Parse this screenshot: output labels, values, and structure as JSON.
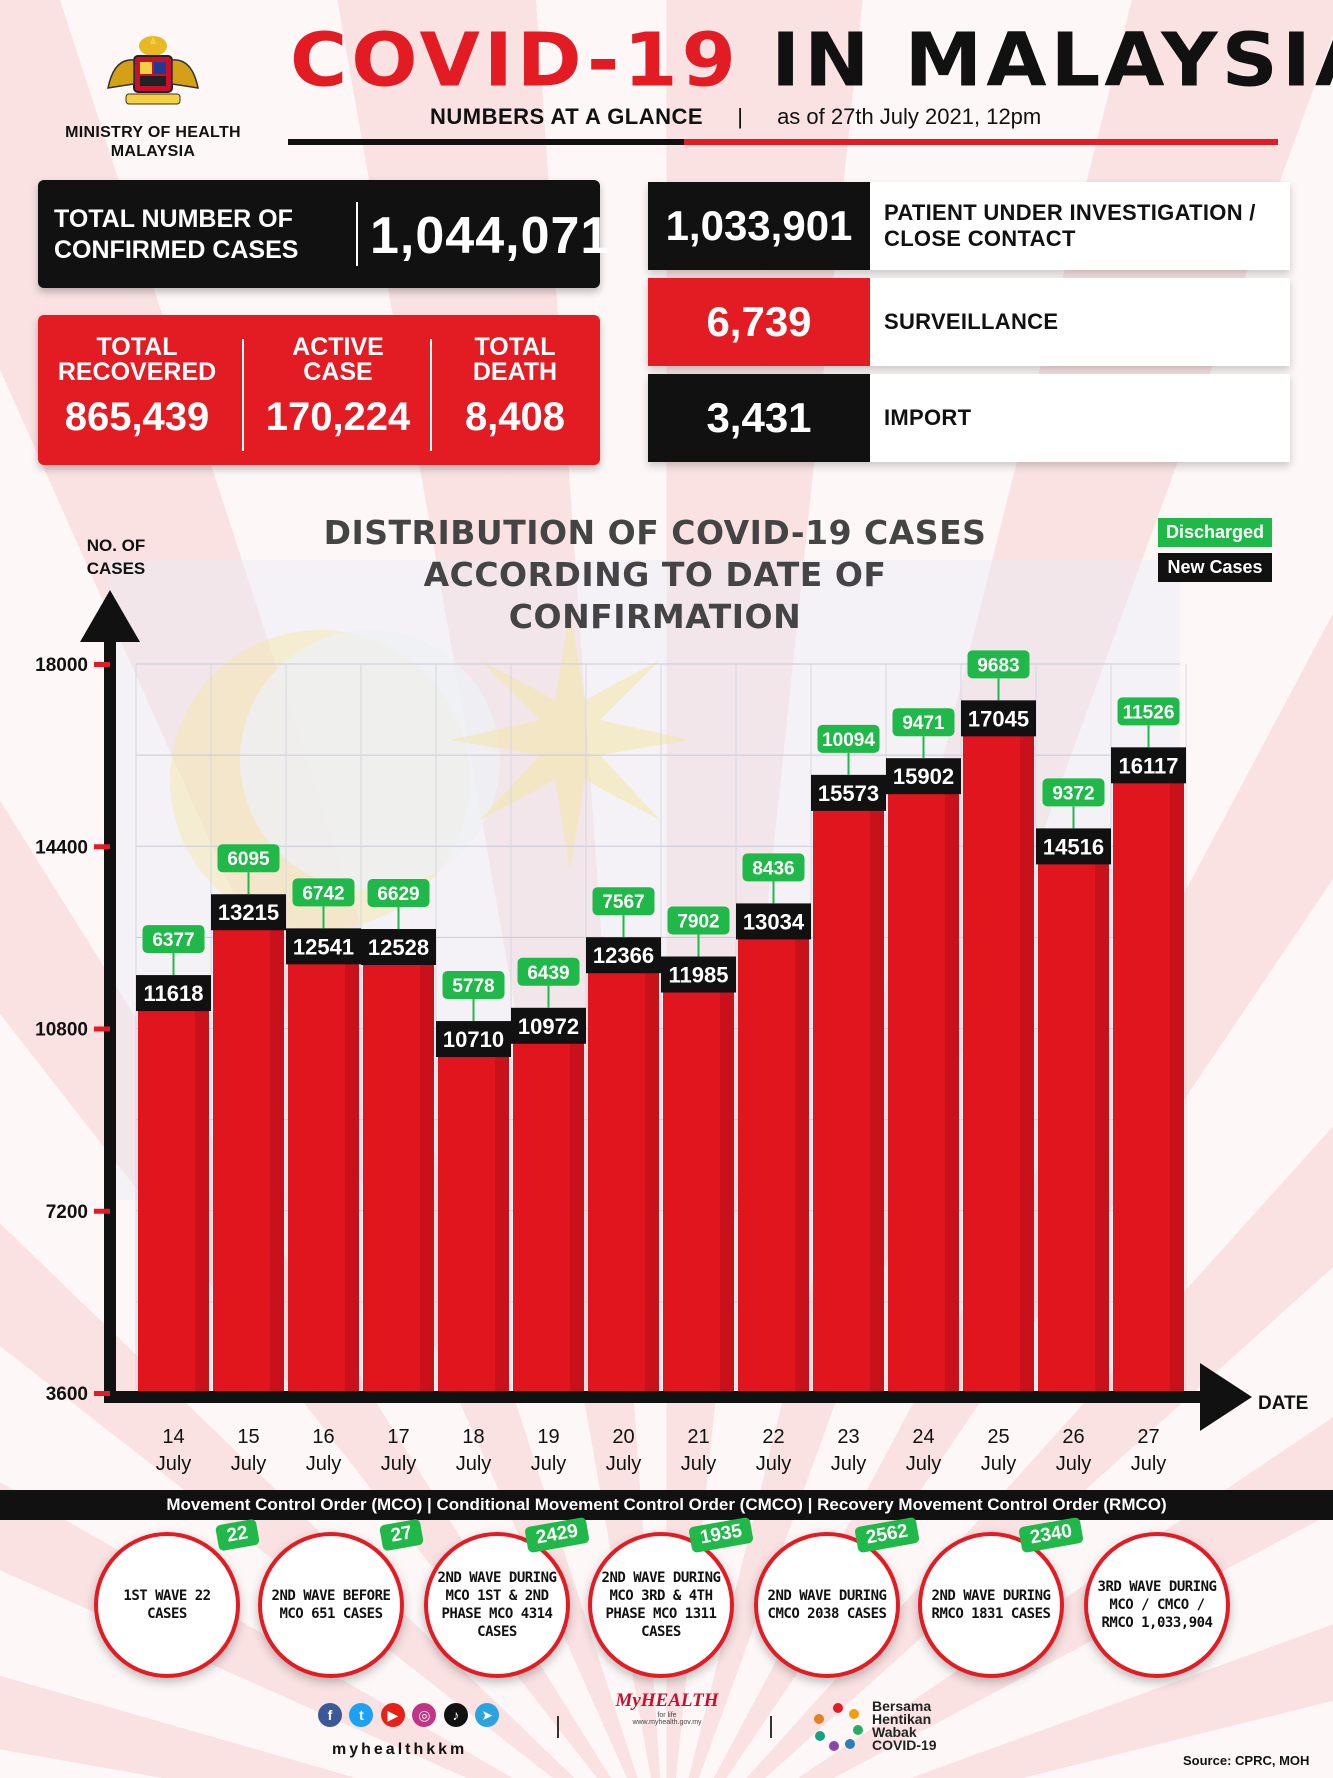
{
  "header": {
    "ministry": "MINISTRY OF HEALTH MALAYSIA",
    "title_red": "COVID-19",
    "title_black": "IN MALAYSIA",
    "subtitle": "NUMBERS AT A GLANCE",
    "separator": "|",
    "as_of": "as of 27th July 2021, 12pm"
  },
  "stats": {
    "confirmed_label": "TOTAL NUMBER OF CONFIRMED CASES",
    "confirmed_value": "1,044,071",
    "recovered_label": "TOTAL RECOVERED",
    "recovered_value": "865,439",
    "active_label": "ACTIVE CASE",
    "active_value": "170,224",
    "death_label": "TOTAL DEATH",
    "death_value": "8,408",
    "pui_value": "1,033,901",
    "pui_label": "PATIENT UNDER INVESTIGATION / CLOSE CONTACT",
    "surveillance_value": "6,739",
    "surveillance_label": "SURVEILLANCE",
    "import_value": "3,431",
    "import_label": "IMPORT"
  },
  "colors": {
    "red": "#e31b23",
    "black": "#111111",
    "green": "#21b84a"
  },
  "chart_data": {
    "type": "bar",
    "title": "DISTRIBUTION OF COVID-19 CASES ACCORDING TO DATE OF CONFIRMATION",
    "ylabel": "NO. OF CASES",
    "xlabel": "DATE",
    "ylim": [
      3600,
      18000
    ],
    "yticks": [
      3600,
      7200,
      10800,
      14400,
      18000
    ],
    "categories": [
      "14 July",
      "15 July",
      "16 July",
      "17 July",
      "18 July",
      "19 July",
      "20 July",
      "21 July",
      "22 July",
      "23 July",
      "24 July",
      "25 July",
      "26 July",
      "27 July"
    ],
    "series": [
      {
        "name": "New Cases",
        "values": [
          11618,
          13215,
          12541,
          12528,
          10710,
          10972,
          12366,
          11985,
          13034,
          15573,
          15902,
          17045,
          14516,
          16117
        ]
      },
      {
        "name": "Discharged",
        "values": [
          6377,
          6095,
          6742,
          6629,
          5778,
          6439,
          7567,
          7902,
          8436,
          10094,
          9471,
          9683,
          9372,
          11526
        ]
      }
    ],
    "legend": "top-right",
    "grid": true
  },
  "mco": {
    "text": "Movement Control Order (MCO) | Conditional Movement Control Order (CMCO) | Recovery Movement Control Order (RMCO)"
  },
  "waves": [
    {
      "text": "1ST WAVE 22 CASES",
      "badge": "22"
    },
    {
      "text": "2ND WAVE BEFORE MCO 651 CASES",
      "badge": "27"
    },
    {
      "text": "2ND WAVE DURING MCO 1ST & 2ND PHASE MCO 4314 CASES",
      "badge": "2429"
    },
    {
      "text": "2ND WAVE DURING MCO 3RD & 4TH PHASE MCO 1311 CASES",
      "badge": "1935"
    },
    {
      "text": "2ND WAVE DURING CMCO 2038 CASES",
      "badge": "2562"
    },
    {
      "text": "2ND WAVE DURING RMCO 1831 CASES",
      "badge": "2340"
    },
    {
      "text": "3RD WAVE DURING MCO / CMCO / RMCO 1,033,904",
      "badge": ""
    }
  ],
  "footer": {
    "handle": "myhealthkkm",
    "myhealth": "MyHEALTH",
    "myhealth_tag": "for life",
    "myhealth_url": "www.myhealth.gov.my",
    "bersama": [
      "Bersama",
      "Hentikan",
      "Wabak",
      "COVID-19"
    ],
    "source": "Source: CPRC, MOH"
  }
}
